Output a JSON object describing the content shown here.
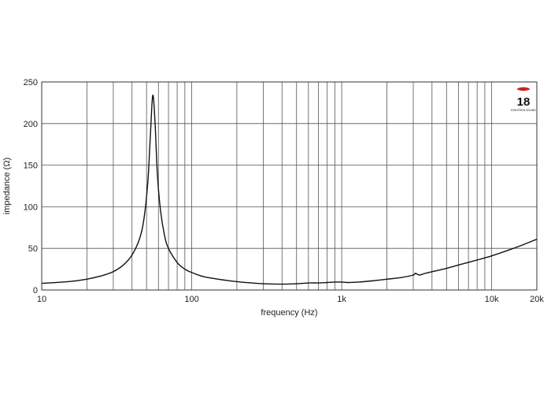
{
  "chart_data": {
    "type": "line",
    "xlabel": "frequency (Hz)",
    "ylabel": "impedance (Ω)",
    "x_scale": "log",
    "xlim": [
      10,
      20000
    ],
    "ylim": [
      0,
      250
    ],
    "grid": true,
    "x_ticks": [
      {
        "value": 10,
        "label": "10"
      },
      {
        "value": 100,
        "label": "100"
      },
      {
        "value": 1000,
        "label": "1k"
      },
      {
        "value": 10000,
        "label": "10k"
      },
      {
        "value": 20000,
        "label": "20k"
      }
    ],
    "y_ticks": [
      0,
      50,
      100,
      150,
      200,
      250
    ],
    "series": [
      {
        "color": "#111111",
        "x": [
          10,
          15,
          20,
          25,
          30,
          35,
          40,
          45,
          48,
          51,
          53,
          55,
          57,
          59,
          62,
          66,
          70,
          80,
          90,
          100,
          120,
          150,
          200,
          250,
          300,
          400,
          500,
          600,
          700,
          800,
          900,
          1000,
          1100,
          1300,
          1600,
          2000,
          2500,
          3000,
          3100,
          3300,
          3600,
          4000,
          5000,
          6000,
          8000,
          10000,
          13000,
          16000,
          20000
        ],
        "values": [
          8,
          10,
          13,
          17,
          22,
          30,
          42,
          62,
          85,
          130,
          185,
          234,
          200,
          140,
          95,
          65,
          50,
          33,
          25,
          21,
          16,
          13,
          10,
          8.5,
          7.5,
          7,
          7.5,
          8.5,
          8.5,
          9,
          9.5,
          9.5,
          9,
          9.5,
          11,
          13,
          15,
          18,
          20,
          18,
          20,
          22,
          26,
          30,
          36,
          41,
          48,
          54,
          61
        ]
      }
    ]
  },
  "logo": {
    "text": "18",
    "subtext": "EIGHTEEN SOUND",
    "accent_color": "#cc2222"
  }
}
